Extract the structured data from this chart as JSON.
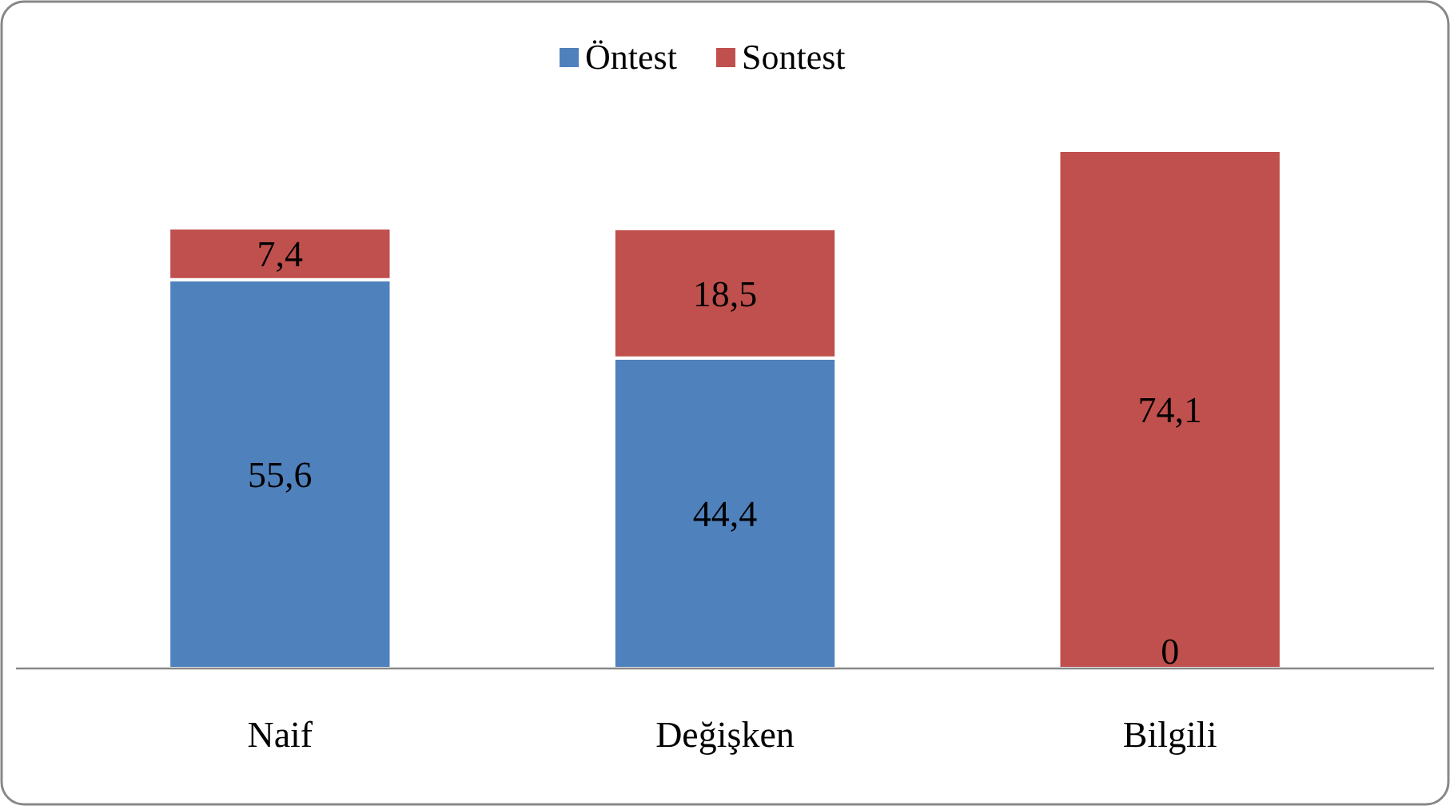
{
  "chart_data": {
    "type": "bar",
    "stacked": true,
    "legend": "top",
    "categories": [
      "Naif",
      "Değişken",
      "Bilgili"
    ],
    "series": [
      {
        "name": "Öntest",
        "color": "#4f81bd",
        "values": [
          55.6,
          44.4,
          0
        ],
        "value_labels": [
          "55,6",
          "44,4",
          "0"
        ]
      },
      {
        "name": "Sontest",
        "color": "#c0504d",
        "values": [
          7.4,
          18.5,
          74.1
        ],
        "value_labels": [
          "7,4",
          "18,5",
          "74,1"
        ]
      }
    ]
  }
}
